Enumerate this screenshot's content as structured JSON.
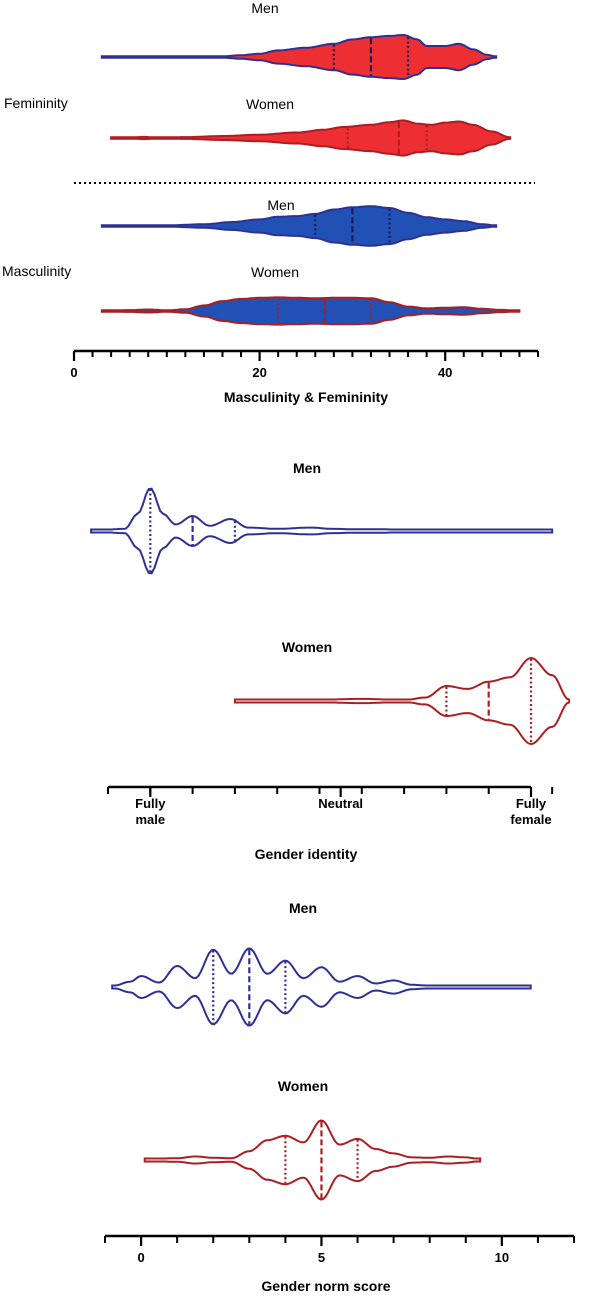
{
  "colors": {
    "blue": "#2e3192",
    "red": "#ab1e22",
    "fill_red": "#ed2f33",
    "fill_blue": "#2251b5",
    "navy_fill": "#2b3a9e"
  },
  "chart_data": [
    {
      "type": "violin",
      "xlabel": "Masculinity & Femininity",
      "xlim": [
        0,
        50
      ],
      "ticks": [
        0,
        20,
        40
      ],
      "tick_labels": [
        "0",
        "20",
        "40"
      ],
      "minor_ticks": [
        2,
        4,
        6,
        8,
        10,
        12,
        14,
        16,
        18,
        22,
        24,
        26,
        28,
        30,
        32,
        34,
        36,
        38,
        42,
        44,
        46,
        48,
        50
      ],
      "groups": [
        {
          "label": "Femininity",
          "separator_below": true
        },
        {
          "label": "Masculinity"
        }
      ],
      "series": [
        {
          "name": "Men",
          "group": "Femininity",
          "outline": "blue",
          "fill": "fill_red",
          "range": [
            3,
            45.5
          ],
          "quartiles": [
            28,
            32,
            36
          ],
          "density": [
            [
              3,
              0.02
            ],
            [
              10,
              0.02
            ],
            [
              16,
              0.03
            ],
            [
              18,
              0.08
            ],
            [
              20,
              0.15
            ],
            [
              22,
              0.3
            ],
            [
              25,
              0.42
            ],
            [
              28,
              0.6
            ],
            [
              30,
              0.8
            ],
            [
              32,
              0.9
            ],
            [
              34,
              0.96
            ],
            [
              35.5,
              1.0
            ],
            [
              37,
              0.8
            ],
            [
              38,
              0.5
            ],
            [
              40,
              0.5
            ],
            [
              41.5,
              0.6
            ],
            [
              43,
              0.35
            ],
            [
              44.5,
              0.1
            ],
            [
              45.5,
              0.02
            ]
          ]
        },
        {
          "name": "Women",
          "group": "Femininity",
          "outline": "red",
          "fill": "fill_red",
          "range": [
            4,
            47
          ],
          "quartiles": [
            29.5,
            35,
            38
          ],
          "density": [
            [
              4,
              0.02
            ],
            [
              6,
              0.02
            ],
            [
              7.5,
              0.05
            ],
            [
              9,
              0.02
            ],
            [
              12,
              0.04
            ],
            [
              16,
              0.09
            ],
            [
              20,
              0.15
            ],
            [
              24,
              0.25
            ],
            [
              27,
              0.38
            ],
            [
              29,
              0.5
            ],
            [
              32,
              0.6
            ],
            [
              34,
              0.72
            ],
            [
              35.5,
              0.8
            ],
            [
              37,
              0.65
            ],
            [
              38.5,
              0.6
            ],
            [
              40,
              0.7
            ],
            [
              41.5,
              0.75
            ],
            [
              43,
              0.6
            ],
            [
              45,
              0.3
            ],
            [
              47,
              0.03
            ]
          ]
        },
        {
          "name": "Men",
          "group": "Masculinity",
          "outline": "blue",
          "fill": "fill_blue",
          "range": [
            3,
            45.5
          ],
          "quartiles": [
            26,
            30,
            34
          ],
          "density": [
            [
              3,
              0.02
            ],
            [
              10,
              0.03
            ],
            [
              14,
              0.08
            ],
            [
              17,
              0.18
            ],
            [
              20,
              0.3
            ],
            [
              22,
              0.42
            ],
            [
              24,
              0.45
            ],
            [
              26,
              0.55
            ],
            [
              28,
              0.75
            ],
            [
              30,
              0.85
            ],
            [
              32,
              0.9
            ],
            [
              34,
              0.82
            ],
            [
              36,
              0.6
            ],
            [
              38,
              0.4
            ],
            [
              40,
              0.3
            ],
            [
              42,
              0.22
            ],
            [
              44,
              0.08
            ],
            [
              45.5,
              0.02
            ]
          ]
        },
        {
          "name": "Women",
          "group": "Masculinity",
          "outline": "red",
          "fill": "fill_blue",
          "range": [
            3,
            48
          ],
          "quartiles": [
            22,
            27,
            32
          ],
          "density": [
            [
              3,
              0.02
            ],
            [
              6,
              0.04
            ],
            [
              8,
              0.07
            ],
            [
              10,
              0.03
            ],
            [
              12,
              0.08
            ],
            [
              14,
              0.25
            ],
            [
              16,
              0.45
            ],
            [
              18,
              0.55
            ],
            [
              20,
              0.6
            ],
            [
              22,
              0.62
            ],
            [
              24,
              0.6
            ],
            [
              26,
              0.58
            ],
            [
              28,
              0.6
            ],
            [
              30,
              0.6
            ],
            [
              32,
              0.58
            ],
            [
              34,
              0.4
            ],
            [
              36,
              0.2
            ],
            [
              38,
              0.12
            ],
            [
              40,
              0.15
            ],
            [
              42,
              0.17
            ],
            [
              44,
              0.1
            ],
            [
              46,
              0.05
            ],
            [
              48,
              0.02
            ]
          ]
        }
      ]
    },
    {
      "type": "violin",
      "xlabel": "Gender identity",
      "xlim": [
        0,
        10
      ],
      "ticks": [
        1,
        5.5,
        10
      ],
      "tick_labels": [
        "Fully\nmale",
        "Neutral",
        "Fully\nfemale"
      ],
      "minor_ticks": [
        0,
        1,
        2,
        3,
        4,
        5,
        6,
        7,
        8,
        9,
        10,
        10.5
      ],
      "series": [
        {
          "name": "Men",
          "title": "Men",
          "outline": "blue",
          "fill": "none",
          "range": [
            -0.4,
            10.5
          ],
          "quartiles": [
            1,
            2,
            3
          ],
          "density": [
            [
              -0.4,
              0.01
            ],
            [
              0.4,
              0.05
            ],
            [
              0.7,
              0.4
            ],
            [
              1,
              1.0
            ],
            [
              1.3,
              0.4
            ],
            [
              1.6,
              0.15
            ],
            [
              2,
              0.35
            ],
            [
              2.4,
              0.12
            ],
            [
              2.9,
              0.28
            ],
            [
              3.3,
              0.08
            ],
            [
              4,
              0.05
            ],
            [
              4.8,
              0.08
            ],
            [
              5.3,
              0.05
            ],
            [
              5.8,
              0.04
            ],
            [
              6.5,
              0.04
            ],
            [
              7,
              0.02
            ],
            [
              8,
              0.02
            ],
            [
              9,
              0.02
            ],
            [
              10.5,
              0.02
            ]
          ]
        },
        {
          "name": "Women",
          "title": "Women",
          "outline": "red",
          "fill": "none",
          "range": [
            3,
            10.9
          ],
          "quartiles": [
            8,
            9,
            10
          ],
          "density": [
            [
              3,
              0.01
            ],
            [
              4,
              0.02
            ],
            [
              5,
              0.03
            ],
            [
              6,
              0.05
            ],
            [
              7,
              0.02
            ],
            [
              7.5,
              0.08
            ],
            [
              8,
              0.35
            ],
            [
              8.5,
              0.28
            ],
            [
              9,
              0.45
            ],
            [
              9.5,
              0.55
            ],
            [
              10,
              1.0
            ],
            [
              10.5,
              0.6
            ],
            [
              10.9,
              0.03
            ]
          ]
        }
      ]
    },
    {
      "type": "violin",
      "xlabel": "Gender norm score",
      "xlim": [
        -1,
        12
      ],
      "ticks": [
        0,
        5,
        10
      ],
      "tick_labels": [
        "0",
        "5",
        "10"
      ],
      "minor_ticks": [
        -1,
        1,
        2,
        3,
        4,
        6,
        7,
        8,
        9,
        11,
        12
      ],
      "series": [
        {
          "name": "Men",
          "title": "Men",
          "outline": "blue",
          "fill": "none",
          "range": [
            -0.8,
            10.8
          ],
          "quartiles": [
            2,
            3,
            4
          ],
          "density": [
            [
              -0.8,
              0.02
            ],
            [
              -0.3,
              0.12
            ],
            [
              0,
              0.25
            ],
            [
              0.5,
              0.1
            ],
            [
              1,
              0.48
            ],
            [
              1.5,
              0.2
            ],
            [
              2,
              0.85
            ],
            [
              2.5,
              0.3
            ],
            [
              3,
              0.88
            ],
            [
              3.5,
              0.3
            ],
            [
              4,
              0.6
            ],
            [
              4.5,
              0.2
            ],
            [
              5,
              0.45
            ],
            [
              5.5,
              0.12
            ],
            [
              6,
              0.25
            ],
            [
              6.5,
              0.08
            ],
            [
              7,
              0.15
            ],
            [
              7.5,
              0.05
            ],
            [
              8,
              0.03
            ],
            [
              9,
              0.02
            ],
            [
              10.8,
              0.02
            ]
          ]
        },
        {
          "name": "Women",
          "title": "Women",
          "outline": "red",
          "fill": "none",
          "range": [
            0.1,
            9.4
          ],
          "quartiles": [
            4,
            5,
            6
          ],
          "density": [
            [
              0.1,
              0.02
            ],
            [
              1,
              0.04
            ],
            [
              1.5,
              0.08
            ],
            [
              2,
              0.05
            ],
            [
              2.5,
              0.04
            ],
            [
              3,
              0.2
            ],
            [
              3.5,
              0.45
            ],
            [
              4,
              0.55
            ],
            [
              4.5,
              0.4
            ],
            [
              5,
              0.9
            ],
            [
              5.5,
              0.35
            ],
            [
              6,
              0.48
            ],
            [
              6.5,
              0.25
            ],
            [
              7,
              0.15
            ],
            [
              7.5,
              0.06
            ],
            [
              8,
              0.05
            ],
            [
              8.5,
              0.08
            ],
            [
              9,
              0.06
            ],
            [
              9.4,
              0.02
            ]
          ]
        }
      ]
    }
  ]
}
